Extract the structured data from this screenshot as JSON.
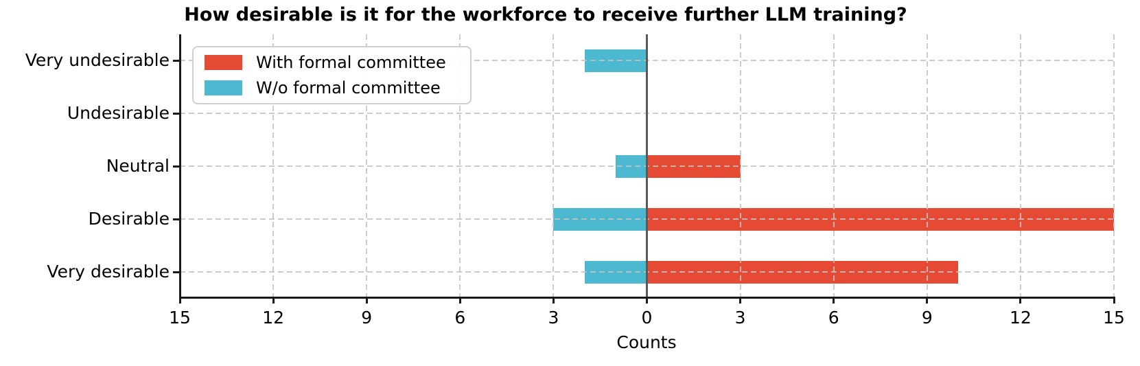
{
  "title": "How desirable is it for the workforce to receive further LLM training?",
  "chart_data": {
    "type": "bar",
    "variant": "diverging-horizontal",
    "title": "How desirable is it for the workforce to receive further LLM training?",
    "xlabel": "Counts",
    "categories": [
      "Very undesirable",
      "Undesirable",
      "Neutral",
      "Desirable",
      "Very desirable"
    ],
    "series": [
      {
        "name": "With formal committee",
        "side": "right",
        "color": "#e54a34",
        "values": [
          0,
          0,
          3,
          15,
          10
        ]
      },
      {
        "name": "W/o formal committee",
        "side": "left",
        "color": "#4db9d1",
        "values": [
          2,
          0,
          1,
          3,
          2
        ]
      }
    ],
    "x_tick_labels": [
      "15",
      "12",
      "9",
      "6",
      "3",
      "0",
      "3",
      "6",
      "9",
      "12",
      "15"
    ],
    "xlim": [
      -15,
      15
    ],
    "grid": true,
    "legend_position": "upper-left",
    "colors": {
      "zero_line": "#595959",
      "grid": "#c3c3c3",
      "axis": "#1a1a1a"
    }
  }
}
